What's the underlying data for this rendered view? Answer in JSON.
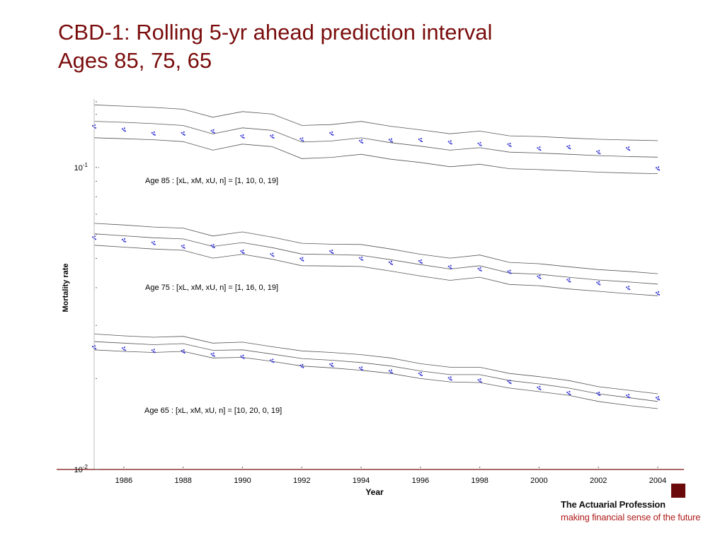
{
  "slide": {
    "title_line1": "CBD-1: Rolling 5-yr ahead prediction interval",
    "title_line2": "Ages 85, 75, 65"
  },
  "branding": {
    "name": "The Actuarial Profession",
    "tagline": "making financial sense of the future",
    "box_color": "#6b0a0a"
  },
  "colors": {
    "title": "#7a0c0c",
    "points": "#3b3bd6",
    "bands": "#555555",
    "rule": "#7a0c0c"
  },
  "chart_data": {
    "type": "line",
    "xlabel": "Year",
    "ylabel": "Mortality rate",
    "yscale": "log",
    "xlim": [
      1985,
      2004
    ],
    "ylim": [
      0.01,
      0.165
    ],
    "x_ticks": [
      1986,
      1988,
      1990,
      1992,
      1994,
      1996,
      1998,
      2000,
      2002,
      2004
    ],
    "y_ticks": [
      {
        "value": 0.1,
        "label_base": "10",
        "label_exp": "-1"
      },
      {
        "value": 0.01,
        "label_base": "10",
        "label_exp": "-2"
      }
    ],
    "panels": [
      {
        "annotation": "Age 85 : [xL, xM, xU, n] = [1, 10, 0, 19]",
        "x_points": [
          1985,
          1986,
          1987,
          1988,
          1989,
          1990,
          1991,
          1992,
          1993,
          1994,
          1995,
          1996,
          1997,
          1998,
          1999,
          2000,
          2001,
          2002,
          2003,
          2004
        ],
        "observed": [
          0.1367,
          0.1334,
          0.1295,
          0.1295,
          0.1318,
          0.1267,
          0.1267,
          0.1238,
          0.1295,
          0.122,
          0.1229,
          0.1233,
          0.1211,
          0.1195,
          0.1188,
          0.1155,
          0.1168,
          0.1124,
          0.1155,
          0.0992
        ],
        "band_x": [
          1985,
          1986,
          1987,
          1988,
          1989,
          1990,
          1991,
          1992,
          1993,
          1994,
          1995,
          1996,
          1997,
          1998,
          1999,
          2000,
          2001,
          2002,
          2003,
          2004
        ],
        "upper": [
          0.1612,
          0.1597,
          0.1581,
          0.1559,
          0.1467,
          0.1532,
          0.1503,
          0.1378,
          0.1387,
          0.1421,
          0.1369,
          0.1333,
          0.1293,
          0.132,
          0.1273,
          0.1266,
          0.1252,
          0.124,
          0.1233,
          0.1227
        ],
        "middle": [
          0.1422,
          0.1411,
          0.1397,
          0.1377,
          0.1292,
          0.1353,
          0.1327,
          0.1214,
          0.1224,
          0.1254,
          0.1208,
          0.1177,
          0.1141,
          0.1163,
          0.1124,
          0.1117,
          0.1106,
          0.1095,
          0.1087,
          0.1082
        ],
        "lower": [
          0.1255,
          0.1245,
          0.1236,
          0.1218,
          0.1141,
          0.1195,
          0.1172,
          0.107,
          0.108,
          0.1106,
          0.1065,
          0.1039,
          0.1006,
          0.1025,
          0.0991,
          0.0984,
          0.0975,
          0.0965,
          0.0958,
          0.0954
        ]
      },
      {
        "annotation": "Age 75 : [xL, xM, xU, n] = [1, 16, 0, 19]",
        "x_points": [
          1985,
          1986,
          1987,
          1988,
          1989,
          1990,
          1991,
          1992,
          1993,
          1994,
          1995,
          1996,
          1997,
          1998,
          1999,
          2000,
          2001,
          2002,
          2003,
          2004
        ],
        "observed": [
          0.0585,
          0.0574,
          0.0562,
          0.0547,
          0.0549,
          0.0526,
          0.0514,
          0.0497,
          0.0526,
          0.0499,
          0.0483,
          0.0488,
          0.0468,
          0.046,
          0.0451,
          0.0434,
          0.0423,
          0.0414,
          0.0399,
          0.0383
        ],
        "band_x": [
          1985,
          1986,
          1987,
          1988,
          1989,
          1990,
          1991,
          1992,
          1993,
          1994,
          1995,
          1996,
          1997,
          1998,
          1999,
          2000,
          2001,
          2002,
          2003,
          2004
        ],
        "upper": [
          0.0653,
          0.0645,
          0.0635,
          0.063,
          0.0593,
          0.0612,
          0.0588,
          0.0561,
          0.0557,
          0.0556,
          0.0537,
          0.0516,
          0.0501,
          0.0513,
          0.0485,
          0.048,
          0.0469,
          0.0459,
          0.0453,
          0.0445
        ],
        "middle": [
          0.0603,
          0.0594,
          0.0585,
          0.058,
          0.0548,
          0.0564,
          0.0543,
          0.0517,
          0.0515,
          0.0512,
          0.0495,
          0.0477,
          0.0461,
          0.0473,
          0.0447,
          0.0443,
          0.0433,
          0.0424,
          0.0418,
          0.0411
        ],
        "lower": [
          0.0553,
          0.0545,
          0.0537,
          0.0532,
          0.0501,
          0.0516,
          0.0497,
          0.0473,
          0.0472,
          0.047,
          0.0454,
          0.0437,
          0.0423,
          0.0433,
          0.041,
          0.0406,
          0.0396,
          0.0389,
          0.0382,
          0.0376
        ]
      },
      {
        "annotation": "Age 65 : [xL, xM, xU, n] = [10, 20, 0, 19]",
        "x_points": [
          1985,
          1986,
          1987,
          1988,
          1989,
          1990,
          1991,
          1992,
          1993,
          1994,
          1995,
          1996,
          1997,
          1998,
          1999,
          2000,
          2001,
          2002,
          2003,
          2004
        ],
        "observed": [
          0.0254,
          0.0251,
          0.0247,
          0.0246,
          0.024,
          0.0236,
          0.0229,
          0.022,
          0.0222,
          0.0216,
          0.0211,
          0.0207,
          0.02,
          0.0197,
          0.0195,
          0.0186,
          0.0179,
          0.0178,
          0.0175,
          0.0172
        ],
        "band_x": [
          1985,
          1986,
          1987,
          1988,
          1989,
          1990,
          1991,
          1992,
          1993,
          1994,
          1995,
          1996,
          1997,
          1998,
          1999,
          2000,
          2001,
          2002,
          2003,
          2004
        ],
        "upper": [
          0.0281,
          0.0277,
          0.0274,
          0.0276,
          0.0262,
          0.0264,
          0.0255,
          0.0247,
          0.0244,
          0.024,
          0.0234,
          0.0224,
          0.0218,
          0.0218,
          0.0208,
          0.0203,
          0.0197,
          0.0188,
          0.0183,
          0.0178
        ],
        "middle": [
          0.0265,
          0.0262,
          0.0259,
          0.0261,
          0.0248,
          0.0249,
          0.0241,
          0.0233,
          0.023,
          0.0226,
          0.022,
          0.0212,
          0.0206,
          0.0206,
          0.0197,
          0.0192,
          0.0186,
          0.0178,
          0.0173,
          0.0168
        ],
        "lower": [
          0.0249,
          0.0246,
          0.0244,
          0.0246,
          0.0234,
          0.0235,
          0.0228,
          0.022,
          0.0217,
          0.0213,
          0.0208,
          0.02,
          0.0195,
          0.0194,
          0.0186,
          0.0181,
          0.0176,
          0.0168,
          0.0163,
          0.0159
        ]
      }
    ]
  }
}
